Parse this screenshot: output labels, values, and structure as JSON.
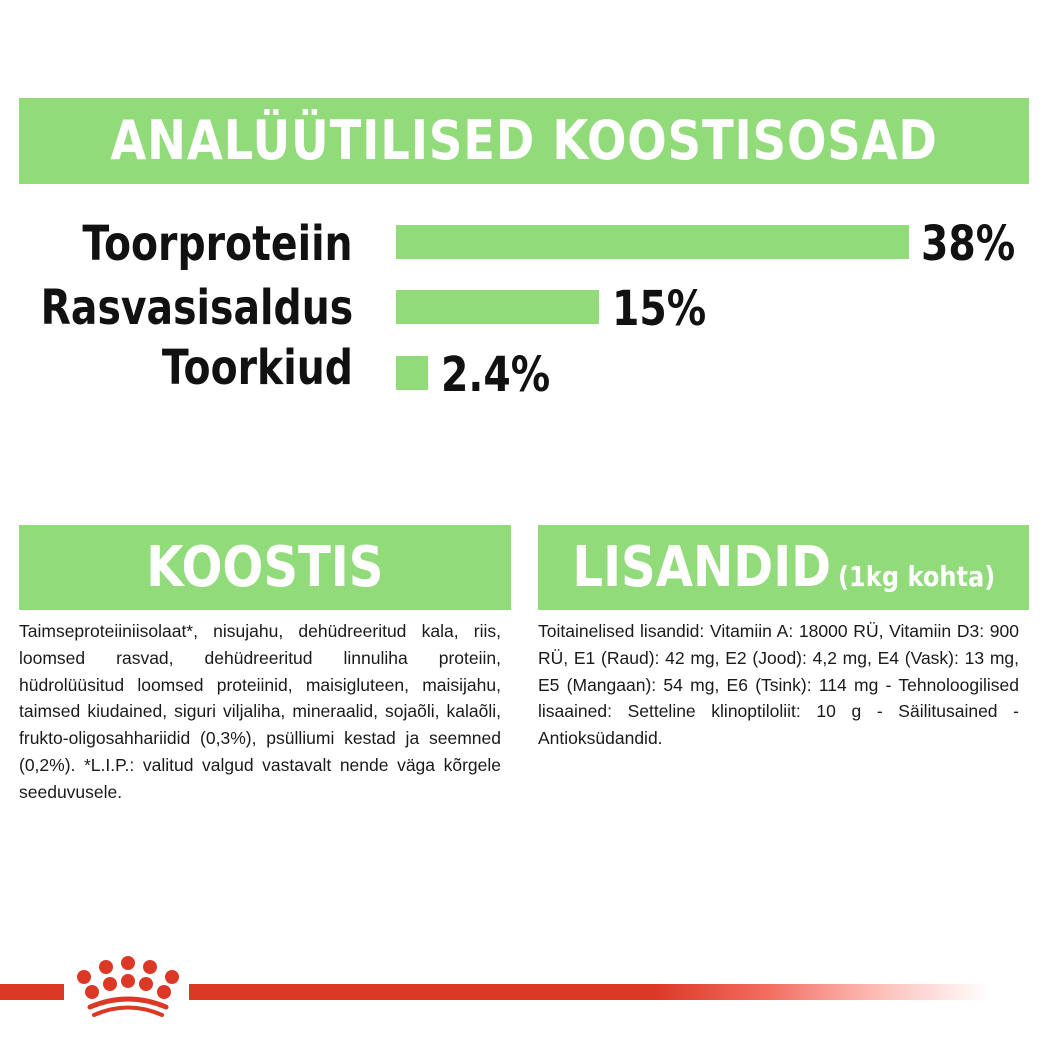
{
  "header": {
    "title": "ANALÜÜTILISED KOOSTISOSAD"
  },
  "chart_data": {
    "type": "bar",
    "orientation": "horizontal",
    "title": "ANALÜÜTILISED KOOSTISOSAD",
    "categories": [
      "Toorproteiin",
      "Rasvasisaldus",
      "Toorkiud"
    ],
    "values": [
      38,
      15,
      2.4
    ],
    "value_labels": [
      "38%",
      "15%",
      "2.4%"
    ],
    "unit": "%",
    "bar_color": "#92db7b",
    "grid": false,
    "legend": null,
    "xlabel": "",
    "ylabel": ""
  },
  "rows": [
    {
      "label": "Toorproteiin",
      "value": "38%"
    },
    {
      "label": "Rasvasisaldus",
      "value": "15%"
    },
    {
      "label": "Toorkiud",
      "value": "2.4%"
    }
  ],
  "sections": {
    "koostis": {
      "title": "KOOSTIS",
      "text": "Taimseproteiiniisolaat*, nisujahu, dehüdreeritud kala, riis, loomsed rasvad, dehüdreeritud linnuliha proteiin, hüdrolüüsitud loomsed proteiinid, maisigluteen, maisijahu, taimsed kiudained, siguri viljaliha, mineraalid, sojaõli, kalaõli, frukto-oligosahhariidid (0,3%), psülliumi kestad ja seemned (0,2%). *L.I.P.: valitud valgud vastavalt nende väga kõrgele seeduvusele."
    },
    "lisandid": {
      "title": "LISANDID",
      "subtitle": "(1kg kohta)",
      "text": "Toitainelised lisandid: Vitamiin A: 18000 RÜ, Vitamiin D3: 900 RÜ, E1 (Raud): 42 mg, E2 (Jood): 4,2 mg, E4 (Vask): 13 mg, E5 (Mangaan): 54 mg, E6 (Tsink): 114 mg - Tehnoloogilised lisaained: Setteline klinoptiloliit: 10 g - Säilitusained - Antioksüdandid."
    }
  },
  "colors": {
    "accent_green": "#92db7b",
    "brand_red": "#dc3826",
    "text_dark": "#111111"
  },
  "footer": {
    "logo_icon": "crown-icon"
  }
}
